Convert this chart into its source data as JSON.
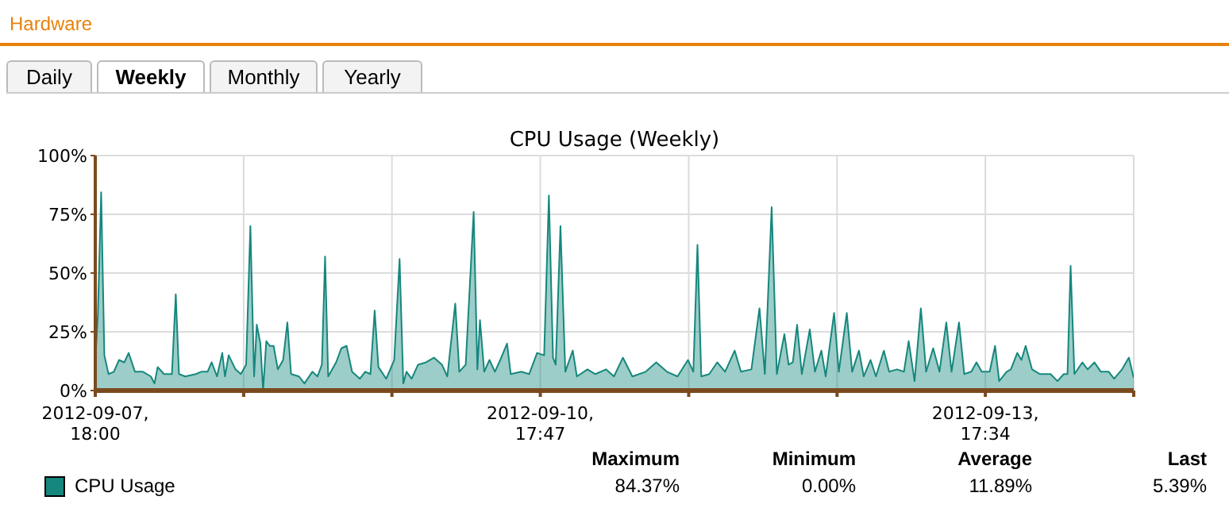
{
  "chart_data": {
    "type": "area",
    "title": "CPU Usage (Weekly)",
    "annotations": [
      "Hardware",
      "Daily",
      "Weekly",
      "Monthly",
      "Yearly",
      "Maximum",
      "Minimum",
      "Average",
      "Last",
      "84.37%",
      "0.00%",
      "11.89%",
      "5.39%"
    ],
    "xlim": [
      "2012-09-07T18:00",
      "2012-09-14T17:30"
    ],
    "xticks": [
      {
        "value": "2012-09-07T18:00",
        "label": "2012-09-07, 18:00"
      },
      {
        "value": "2012-09-08T17:56",
        "label": null
      },
      {
        "value": "2012-09-09T17:51",
        "label": null
      },
      {
        "value": "2012-09-10T17:47",
        "label": "2012-09-10, 17:47"
      },
      {
        "value": "2012-09-11T17:43",
        "label": null
      },
      {
        "value": "2012-09-12T17:39",
        "label": null
      },
      {
        "value": "2012-09-13T17:34",
        "label": "2012-09-13, 17:34"
      },
      {
        "value": "2012-09-14T17:30",
        "label": null
      }
    ],
    "ylim": [
      0,
      100
    ],
    "yticks": [
      {
        "value": 0,
        "label": "0%"
      },
      {
        "value": 25,
        "label": "25%"
      },
      {
        "value": 50,
        "label": "50%"
      },
      {
        "value": 75,
        "label": "75%"
      },
      {
        "value": 100,
        "label": "100%"
      }
    ],
    "grid": true,
    "legend": "bottom left",
    "x": [
      "2012-09-07T18:00",
      "2012-09-07T18:25",
      "2012-09-07T18:57",
      "2012-09-07T19:28",
      "2012-09-07T20:08",
      "2012-09-07T21:00",
      "2012-09-07T21:50",
      "2012-09-07T22:41",
      "2012-09-07T23:23",
      "2012-09-08T00:24",
      "2012-09-08T01:41",
      "2012-09-08T02:58",
      "2012-09-08T03:33",
      "2012-09-08T04:04",
      "2012-09-08T05:05",
      "2012-09-08T06:22",
      "2012-09-08T06:59",
      "2012-09-08T07:30",
      "2012-09-08T08:31",
      "2012-09-08T10:13",
      "2012-09-08T11:05",
      "2012-09-08T12:07",
      "2012-09-08T12:46",
      "2012-09-08T13:38",
      "2012-09-08T14:29",
      "2012-09-08T14:55",
      "2012-09-08T15:31",
      "2012-09-08T16:37",
      "2012-09-08T17:29",
      "2012-09-08T18:20",
      "2012-09-08T19:01",
      "2012-09-08T19:37",
      "2012-09-08T20:03",
      "2012-09-08T20:38",
      "2012-09-08T21:04",
      "2012-09-08T21:35",
      "2012-09-08T22:10",
      "2012-09-08T22:46",
      "2012-09-08T23:27",
      "2012-09-09T00:18",
      "2012-09-09T00:59",
      "2012-09-09T01:35",
      "2012-09-09T02:52",
      "2012-09-09T03:44",
      "2012-09-09T05:01",
      "2012-09-09T05:51",
      "2012-09-09T06:33",
      "2012-09-09T07:04",
      "2012-09-09T07:34",
      "2012-09-09T08:51",
      "2012-09-09T09:42",
      "2012-09-09T10:32",
      "2012-09-09T11:25",
      "2012-09-09T12:41",
      "2012-09-09T13:32",
      "2012-09-09T14:23",
      "2012-09-09T15:04",
      "2012-09-09T15:40",
      "2012-09-09T16:56",
      "2012-09-09T18:13",
      "2012-09-09T19:05",
      "2012-09-09T19:41",
      "2012-09-09T20:12",
      "2012-09-09T21:02",
      "2012-09-09T22:04",
      "2012-09-09T23:21",
      "2012-09-10T00:38",
      "2012-09-10T01:55",
      "2012-09-10T02:47",
      "2012-09-10T04:04",
      "2012-09-10T04:43",
      "2012-09-10T05:45",
      "2012-09-10T07:02",
      "2012-09-10T07:38",
      "2012-09-10T08:03",
      "2012-09-10T08:44",
      "2012-09-10T09:35",
      "2012-09-10T10:28",
      "2012-09-10T11:19",
      "2012-09-10T12:25",
      "2012-09-10T13:01",
      "2012-09-10T14:43",
      "2012-09-10T15:59",
      "2012-09-10T17:16",
      "2012-09-10T18:24",
      "2012-09-10T19:10",
      "2012-09-10T19:50",
      "2012-09-10T20:16",
      "2012-09-10T21:02",
      "2012-09-10T21:49",
      "2012-09-10T23:01",
      "2012-09-10T23:41",
      "2012-09-11T01:23",
      "2012-09-11T02:40",
      "2012-09-11T04:23",
      "2012-09-11T05:40",
      "2012-09-11T07:06",
      "2012-09-11T08:38",
      "2012-09-11T10:47",
      "2012-09-11T12:29",
      "2012-09-11T14:12",
      "2012-09-11T15:55",
      "2012-09-11T17:36",
      "2012-09-11T18:28",
      "2012-09-11T19:08",
      "2012-09-11T19:45",
      "2012-09-11T21:02",
      "2012-09-11T22:19",
      "2012-09-11T23:35",
      "2012-09-12T01:08",
      "2012-09-12T02:09",
      "2012-09-12T03:50",
      "2012-09-12T05:08",
      "2012-09-12T06:00",
      "2012-09-12T07:06",
      "2012-09-12T07:56",
      "2012-09-12T09:09",
      "2012-09-12T09:50",
      "2012-09-12T10:31",
      "2012-09-12T11:12",
      "2012-09-12T11:58",
      "2012-09-12T13:15",
      "2012-09-12T14:05",
      "2012-09-12T15:07",
      "2012-09-12T15:49",
      "2012-09-12T17:10",
      "2012-09-12T17:56",
      "2012-09-12T19:13",
      "2012-09-12T20:05",
      "2012-09-12T21:11",
      "2012-09-12T21:57",
      "2012-09-12T23:03",
      "2012-09-12T23:55",
      "2012-09-13T01:12",
      "2012-09-13T02:03",
      "2012-09-13T03:20",
      "2012-09-13T04:26",
      "2012-09-13T05:12",
      "2012-09-13T06:09",
      "2012-09-13T07:10",
      "2012-09-13T08:01",
      "2012-09-13T09:09",
      "2012-09-13T10:10",
      "2012-09-13T11:16",
      "2012-09-13T12:07",
      "2012-09-13T13:19",
      "2012-09-13T14:10",
      "2012-09-13T15:18",
      "2012-09-13T16:08",
      "2012-09-13T16:59",
      "2012-09-13T18:16",
      "2012-09-13T19:08",
      "2012-09-13T19:48",
      "2012-09-13T21:00",
      "2012-09-13T21:41",
      "2012-09-13T22:43",
      "2012-09-13T23:23",
      "2012-09-14T00:04",
      "2012-09-14T01:06",
      "2012-09-14T02:23",
      "2012-09-14T04:05",
      "2012-09-14T05:12",
      "2012-09-14T06:13",
      "2012-09-14T06:49",
      "2012-09-14T07:19",
      "2012-09-14T07:56",
      "2012-09-14T09:13",
      "2012-09-14T10:04",
      "2012-09-14T11:10",
      "2012-09-14T12:11",
      "2012-09-14T13:28",
      "2012-09-14T14:20",
      "2012-09-14T15:37",
      "2012-09-14T16:43",
      "2012-09-14T17:30"
    ],
    "series": [
      {
        "name": "CPU Usage",
        "color": "#16877d",
        "values": [
          12,
          32,
          84.37,
          15,
          7,
          8,
          13,
          12,
          16,
          8,
          8,
          6,
          3,
          10,
          7,
          7,
          41,
          7,
          6,
          7,
          8,
          8,
          12,
          6,
          16,
          6,
          15,
          9,
          7,
          11,
          70,
          6,
          28,
          20,
          0,
          21,
          19,
          19,
          9,
          13,
          29,
          7,
          6,
          3,
          8,
          6,
          11,
          57,
          6,
          12,
          18,
          19,
          8,
          5,
          8,
          7,
          34,
          10,
          5,
          13,
          56,
          3,
          8,
          5,
          11,
          12,
          14,
          11,
          6,
          37,
          8,
          11,
          76,
          9,
          30,
          8,
          13,
          8,
          13,
          20,
          7,
          8,
          7,
          16,
          15,
          83,
          14,
          11,
          70,
          8,
          17,
          6,
          9,
          7,
          9,
          6,
          14,
          6,
          8,
          12,
          8,
          6,
          13,
          8,
          62,
          6,
          7,
          12,
          8,
          17,
          8,
          9,
          35,
          7,
          78,
          7,
          24,
          11,
          12,
          28,
          7,
          26,
          8,
          17,
          6,
          33,
          8,
          33,
          8,
          17,
          6,
          13,
          6,
          17,
          8,
          9,
          8,
          21,
          4,
          35,
          8,
          18,
          8,
          29,
          8,
          29,
          7,
          8,
          12,
          8,
          8,
          19,
          4,
          8,
          9,
          16,
          13,
          19,
          9,
          7,
          7,
          4,
          7,
          7,
          53,
          7,
          12,
          9,
          12,
          8,
          8,
          5,
          9,
          14,
          5.39
        ]
      }
    ]
  }
}
